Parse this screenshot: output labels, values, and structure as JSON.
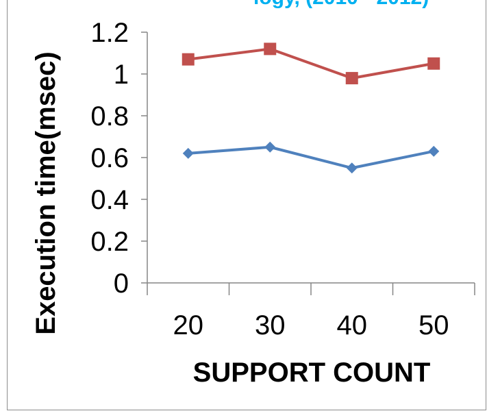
{
  "top_cut_text": "logy, (2010 - 2012)",
  "chart_data": {
    "type": "line",
    "categories": [
      "20",
      "30",
      "40",
      "50"
    ],
    "series": [
      {
        "values": [
          0.62,
          0.65,
          0.55,
          0.63
        ],
        "color": "#4f81bd",
        "marker": "diamond"
      },
      {
        "values": [
          1.07,
          1.12,
          0.98,
          1.05
        ],
        "color": "#c0504d",
        "marker": "square"
      }
    ],
    "xlabel": "SUPPORT COUNT",
    "ylabel": "Execution time(msec)",
    "ylim": [
      0,
      1.2
    ],
    "yticks": [
      "0",
      "0.2",
      "0.4",
      "0.6",
      "0.8",
      "1",
      "1.2"
    ],
    "grid": false,
    "legend": "none"
  }
}
